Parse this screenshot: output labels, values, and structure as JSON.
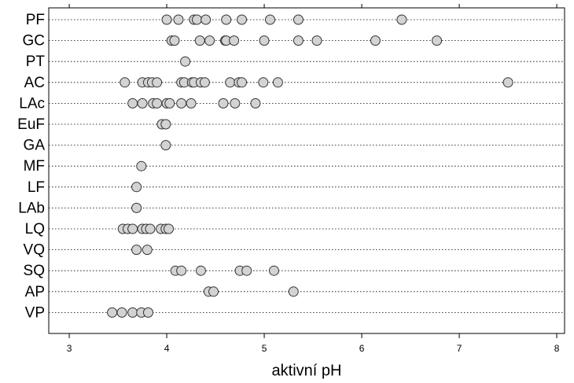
{
  "chart_data": {
    "type": "strip",
    "x_label": "aktivní pH",
    "categories": [
      "PF",
      "GC",
      "PT",
      "AC",
      "LAc",
      "EuF",
      "GA",
      "MF",
      "LF",
      "LAb",
      "LQ",
      "VQ",
      "SQ",
      "AP",
      "VP"
    ],
    "values": [
      [
        4.0,
        4.12,
        4.28,
        4.31,
        4.4,
        4.61,
        4.77,
        5.06,
        5.35,
        6.41
      ],
      [
        4.05,
        4.08,
        4.34,
        4.44,
        4.6,
        4.61,
        4.69,
        5.0,
        5.35,
        5.54,
        6.14,
        6.77
      ],
      [
        4.19
      ],
      [
        3.57,
        3.75,
        3.81,
        3.85,
        3.9,
        4.15,
        4.18,
        4.26,
        4.28,
        4.35,
        4.39,
        4.65,
        4.74,
        4.77,
        4.99,
        5.14,
        7.5
      ],
      [
        3.65,
        3.75,
        3.86,
        3.9,
        4.0,
        4.03,
        4.15,
        4.25,
        4.58,
        4.7,
        4.91
      ],
      [
        3.95,
        3.99
      ],
      [
        3.99
      ],
      [
        3.74
      ],
      [
        3.69
      ],
      [
        3.69
      ],
      [
        3.55,
        3.6,
        3.65,
        3.75,
        3.79,
        3.83,
        3.94,
        3.99,
        4.02
      ],
      [
        3.69,
        3.8
      ],
      [
        4.09,
        4.15,
        4.35,
        4.75,
        4.82,
        5.1
      ],
      [
        4.43,
        4.48,
        5.3
      ],
      [
        3.44,
        3.54,
        3.65,
        3.74,
        3.81
      ]
    ],
    "color": "#d3d3d3",
    "xlim": [
      2.79,
      8.08
    ],
    "xticks": [
      3,
      4,
      5,
      6,
      7,
      8
    ],
    "grid": true
  }
}
